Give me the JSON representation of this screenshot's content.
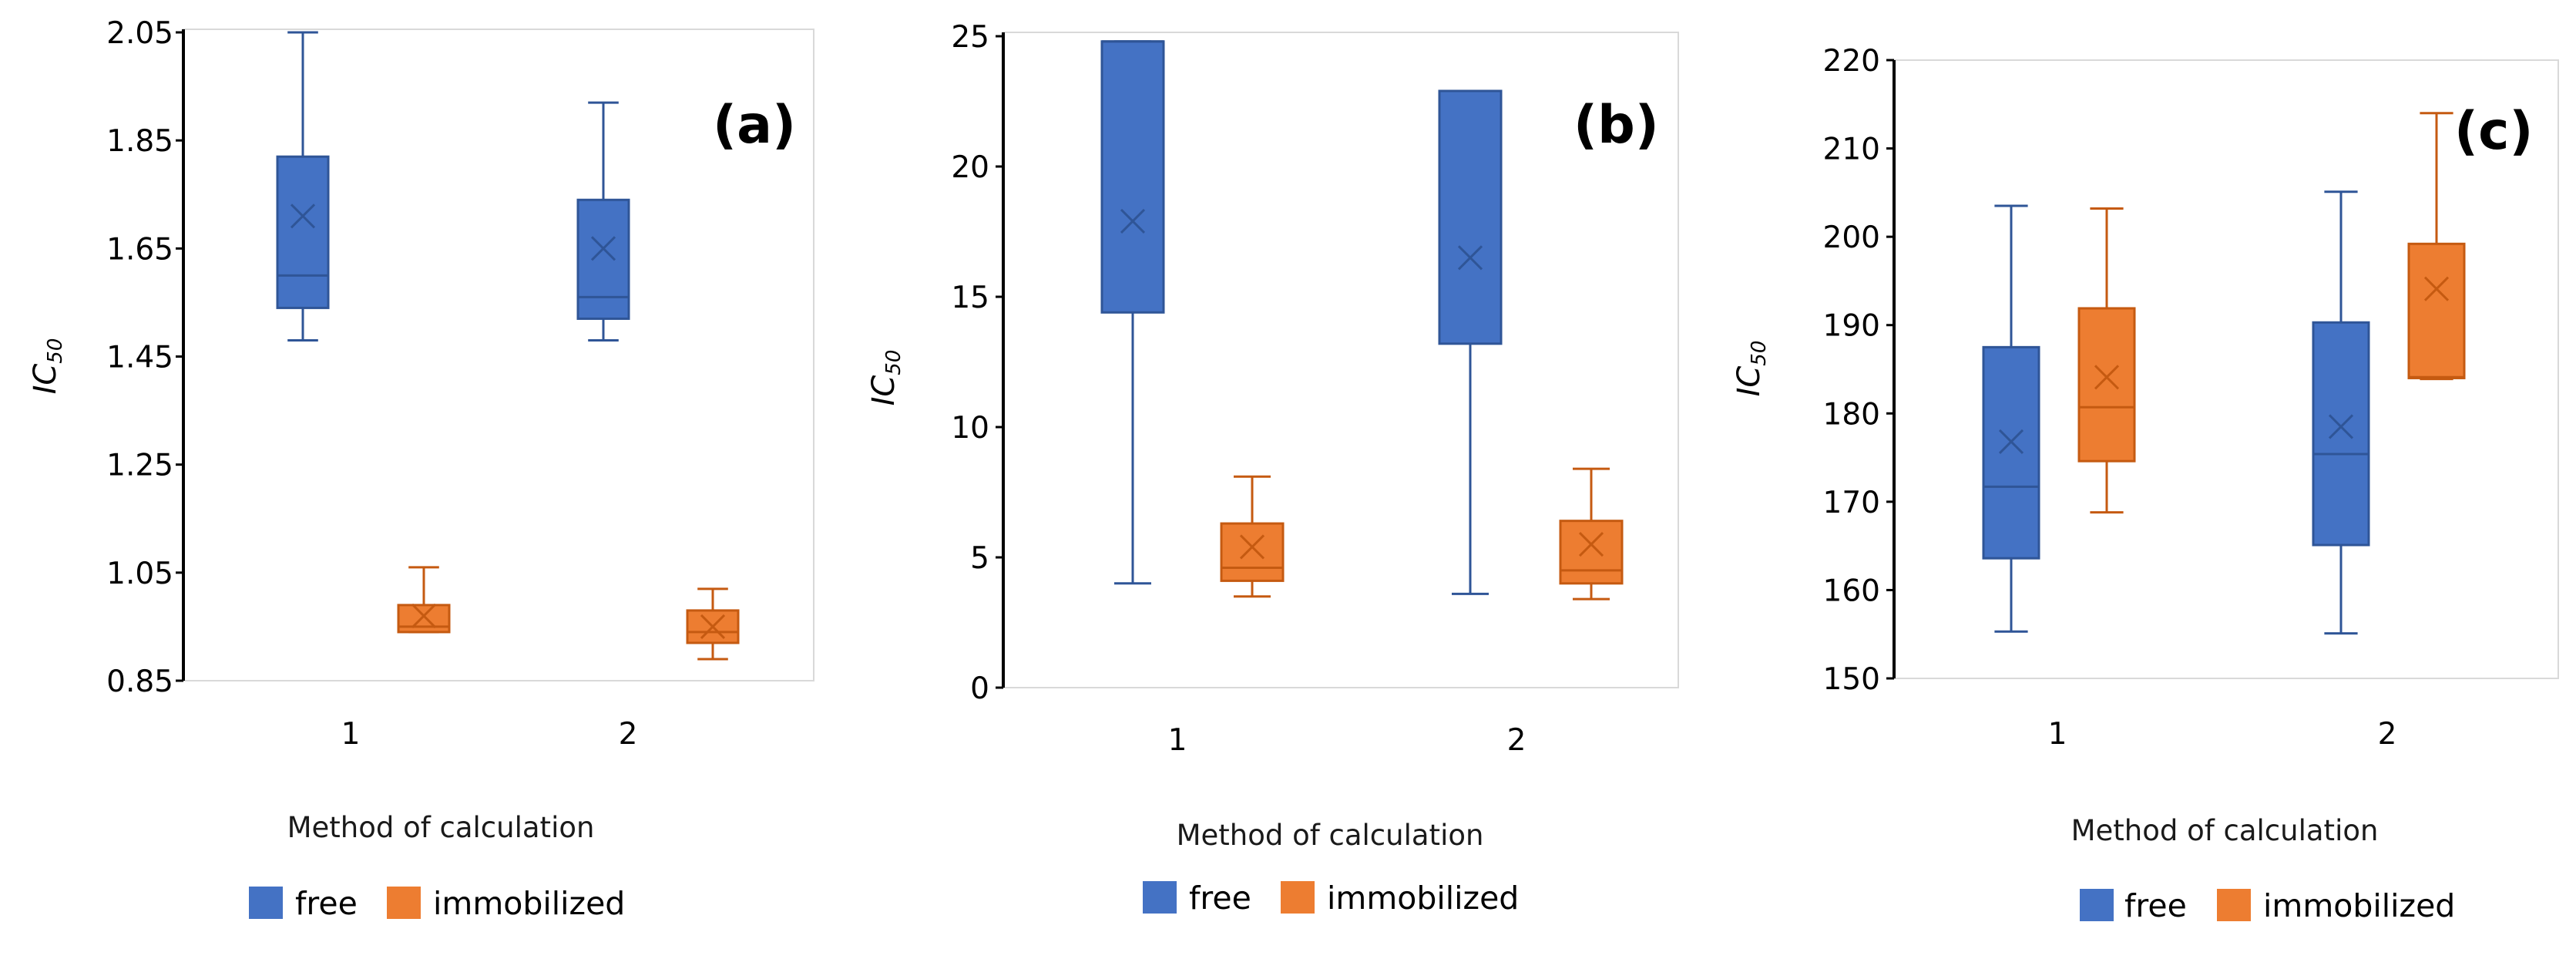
{
  "chart_data": [
    {
      "type": "box",
      "panel_label": "(a)",
      "ylabel": "IC",
      "ylabel_subscript": "50",
      "xlabel": "Method of calculation",
      "ylim": [
        0.85,
        2.05
      ],
      "yticks": [
        "2.05",
        "1.85",
        "1.65",
        "1.45",
        "1.25",
        "1.05",
        "0.85"
      ],
      "ytick_values": [
        2.05,
        1.85,
        1.65,
        1.45,
        1.25,
        1.05,
        0.85
      ],
      "categories": [
        "1",
        "2"
      ],
      "legend": [
        "free",
        "immobilized"
      ],
      "series": [
        {
          "name": "free",
          "color": "#4472C4",
          "boxes": [
            {
              "min": 1.48,
              "q1": 1.54,
              "median": 1.6,
              "q3": 1.82,
              "max": 2.05,
              "mean": 1.71
            },
            {
              "min": 1.48,
              "q1": 1.52,
              "median": 1.56,
              "q3": 1.74,
              "max": 1.92,
              "mean": 1.65
            }
          ]
        },
        {
          "name": "immobilized",
          "color": "#ED7D31",
          "boxes": [
            {
              "min": 0.94,
              "q1": 0.94,
              "median": 0.95,
              "q3": 0.99,
              "max": 1.06,
              "mean": 0.97
            },
            {
              "min": 0.89,
              "q1": 0.92,
              "median": 0.94,
              "q3": 0.98,
              "max": 1.02,
              "mean": 0.95
            }
          ]
        }
      ]
    },
    {
      "type": "box",
      "panel_label": "(b)",
      "ylabel": "IC",
      "ylabel_subscript": "50",
      "xlabel": "Method of calculation",
      "ylim": [
        0,
        25
      ],
      "yticks": [
        "25",
        "20",
        "15",
        "10",
        "5",
        "0"
      ],
      "ytick_values": [
        25,
        20,
        15,
        10,
        5,
        0
      ],
      "categories": [
        "1",
        "2"
      ],
      "legend": [
        "free",
        "immobilized"
      ],
      "series": [
        {
          "name": "free",
          "color": "#4472C4",
          "boxes": [
            {
              "min": 4.0,
              "q1": 14.4,
              "median": 24.8,
              "q3": 24.8,
              "max": 24.8,
              "mean": 17.9
            },
            {
              "min": 3.6,
              "q1": 13.2,
              "median": 22.9,
              "q3": 22.9,
              "max": 22.9,
              "mean": 16.5
            }
          ]
        },
        {
          "name": "immobilized",
          "color": "#ED7D31",
          "boxes": [
            {
              "min": 3.5,
              "q1": 4.1,
              "median": 4.6,
              "q3": 6.3,
              "max": 8.1,
              "mean": 5.4
            },
            {
              "min": 3.4,
              "q1": 4.0,
              "median": 4.5,
              "q3": 6.4,
              "max": 8.4,
              "mean": 5.5
            }
          ]
        }
      ]
    },
    {
      "type": "box",
      "panel_label": "(c)",
      "ylabel": "IC",
      "ylabel_subscript": "50",
      "xlabel": "Method of calculation",
      "ylim": [
        150,
        220
      ],
      "yticks": [
        "220",
        "210",
        "200",
        "190",
        "180",
        "170",
        "160",
        "150"
      ],
      "ytick_values": [
        220,
        210,
        200,
        190,
        180,
        170,
        160,
        150
      ],
      "categories": [
        "1",
        "2"
      ],
      "legend": [
        "free",
        "immobilized"
      ],
      "series": [
        {
          "name": "free",
          "color": "#4472C4",
          "boxes": [
            {
              "min": 155.3,
              "q1": 163.6,
              "median": 171.7,
              "q3": 187.5,
              "max": 203.5,
              "mean": 176.8
            },
            {
              "min": 155.1,
              "q1": 165.1,
              "median": 175.4,
              "q3": 190.3,
              "max": 205.1,
              "mean": 178.5
            }
          ]
        },
        {
          "name": "immobilized",
          "color": "#ED7D31",
          "boxes": [
            {
              "min": 168.8,
              "q1": 174.6,
              "median": 180.7,
              "q3": 191.9,
              "max": 203.2,
              "mean": 184.1
            },
            {
              "min": 183.9,
              "q1": 184.0,
              "median": 184.1,
              "q3": 199.2,
              "max": 214.0,
              "mean": 194.1
            }
          ]
        }
      ]
    }
  ]
}
